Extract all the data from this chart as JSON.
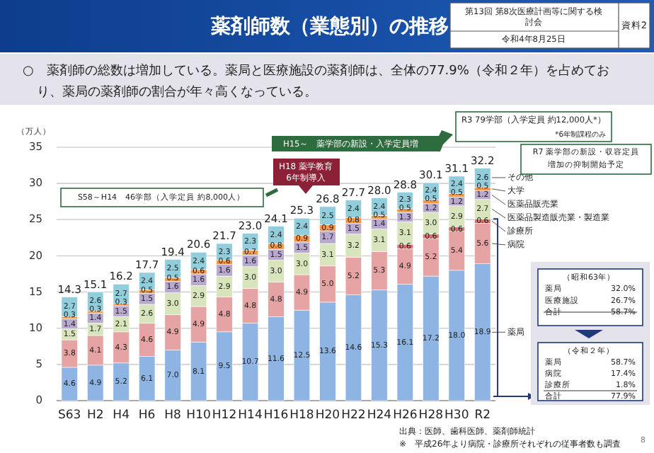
{
  "chart_data": {
    "type": "bar",
    "stacked": true,
    "title": "薬剤師数（業態別）の推移",
    "subtitle": "○　薬剤師の総数は増加している。薬局と医療施設の薬剤師は、全体の77.9%（令和２年）を占めており、薬局の薬剤師の割合が年々高くなっている。",
    "ylabel": "（万人）",
    "categories": [
      "S63",
      "H2",
      "H4",
      "H6",
      "H8",
      "H10",
      "H12",
      "H14",
      "H16",
      "H18",
      "H20",
      "H22",
      "H24",
      "H26",
      "H28",
      "H30",
      "R2"
    ],
    "series": [
      {
        "name": "薬局",
        "color": "#8db4e2",
        "values": [
          4.6,
          4.9,
          5.2,
          6.1,
          7.0,
          8.1,
          9.5,
          10.7,
          11.6,
          12.5,
          13.6,
          14.6,
          15.3,
          16.1,
          17.2,
          18.0,
          18.9
        ],
        "value_labels": [
          "4.6",
          "4.9",
          "5.2",
          "6.1",
          "7.0",
          "8.1",
          "9.5",
          "10.7",
          "11.6",
          "12.5",
          "13.6",
          "14.6",
          "15.3",
          "16.1",
          "17.2",
          "18.0",
          "18.9"
        ]
      },
      {
        "name": "病院",
        "color": "#e6a3a3",
        "values": [
          3.8,
          4.1,
          4.3,
          4.6,
          4.9,
          4.9,
          4.8,
          4.8,
          4.8,
          4.9,
          5.0,
          5.2,
          5.3,
          4.9,
          5.2,
          5.4,
          5.6
        ],
        "value_labels": [
          "3.8",
          "4.1",
          "4.3",
          "4.6",
          "4.9",
          "4.9",
          "4.8",
          "4.8",
          "4.8",
          "4.9",
          "5.0",
          "5.2",
          "5.3",
          "4.9",
          "5.2",
          "5.4",
          "5.6"
        ]
      },
      {
        "name": "診療所",
        "color": "#d9706e",
        "values": [
          null,
          null,
          null,
          null,
          null,
          null,
          null,
          null,
          null,
          null,
          null,
          null,
          null,
          0.6,
          0.6,
          0.6,
          0.6
        ],
        "value_labels": [
          null,
          null,
          null,
          null,
          null,
          null,
          null,
          null,
          null,
          null,
          null,
          null,
          null,
          "0.6",
          "0.6",
          "0.6",
          "0.6"
        ]
      },
      {
        "name": "医薬品製造販売業・製造業",
        "color": "#d7e4bc",
        "values": [
          1.5,
          1.7,
          2.1,
          2.6,
          3.0,
          2.9,
          2.9,
          3.0,
          3.0,
          3.0,
          3.1,
          3.2,
          3.1,
          3.1,
          3.0,
          2.9,
          2.7
        ],
        "value_labels": [
          "1.5",
          "1.7",
          "2.1",
          "2.6",
          "3.0",
          "2.9",
          "2.9",
          "3.0",
          "3.0",
          "3.0",
          "3.1",
          "3.2",
          "3.1",
          "3.1",
          "3.0",
          "2.9",
          "2.7"
        ]
      },
      {
        "name": "医薬品販売業",
        "color": "#b9a9d0",
        "values": [
          1.4,
          1.4,
          1.5,
          1.5,
          1.6,
          1.6,
          1.6,
          1.6,
          1.5,
          1.5,
          1.7,
          1.5,
          1.4,
          1.3,
          1.2,
          1.2,
          1.2
        ],
        "value_labels": [
          "1.4",
          "1.4",
          "1.5",
          "1.5",
          "1.6",
          "1.6",
          "1.6",
          "1.6",
          "1.5",
          "1.5",
          "1.7",
          "1.5",
          "1.4",
          "1.3",
          "1.2",
          "1.2",
          "1.2"
        ]
      },
      {
        "name": "大学",
        "color": "#f79646",
        "values": [
          0.3,
          0.3,
          0.3,
          0.5,
          0.5,
          0.6,
          0.6,
          0.7,
          0.8,
          0.9,
          0.9,
          0.8,
          0.5,
          0.5,
          0.5,
          0.5,
          0.5
        ],
        "value_labels": [
          "0.3",
          "0.3",
          "0.3",
          "0.5",
          "0.5",
          "0.6",
          "0.6",
          "0.7",
          "0.8",
          "0.9",
          "0.9",
          "0.8",
          "0.5",
          "0.5",
          "0.5",
          "0.5",
          "0.5"
        ]
      },
      {
        "name": "その他",
        "color": "#92cddc",
        "values": [
          2.7,
          2.6,
          2.7,
          2.4,
          2.5,
          2.4,
          2.3,
          2.3,
          2.4,
          2.4,
          2.5,
          2.4,
          2.4,
          2.3,
          2.4,
          2.4,
          2.6
        ],
        "value_labels": [
          "2.7",
          "2.6",
          "2.7",
          "2.4",
          "2.5",
          "2.4",
          "2.3",
          "2.3",
          "2.4",
          "2.4",
          "2.5",
          "2.4",
          "2.4",
          "2.3",
          "2.4",
          "2.4",
          "2.6"
        ]
      }
    ],
    "totals": [
      "14.3",
      "15.1",
      "16.2",
      "17.7",
      "19.4",
      "20.6",
      "21.7",
      "23.0",
      "24.1",
      "25.3",
      "26.8",
      "27.7",
      "28.0",
      "28.8",
      "30.1",
      "31.1",
      "32.2"
    ],
    "ylim": [
      0,
      35
    ],
    "yticks": [
      0,
      5,
      10,
      15,
      20,
      25,
      30,
      35
    ],
    "grid": "y",
    "annotations": [
      "第13回 第8次医療計画等に関する検",
      "討会",
      "令和4年8月25日",
      "資料2",
      "S58～H14　46学部（入学定員 約8,000人）",
      "H15～　薬学部の新設・入学定員増",
      "H18 薬学教育",
      "6年制導入",
      "R3 79学部（入学定員 約12,000人*）",
      "*6年制課程のみ",
      "R7 薬学部の新設・収容定員",
      "増加の抑制開始予定",
      "（昭和63年）",
      "薬局 32.0%",
      "医療施設 26.7%",
      "合計 58.7%",
      "（令和２年）",
      "薬局 58.7%",
      "病院 17.4%",
      "診療所 1.8%",
      "合計 77.9%",
      "出典：医師、歯科医師、薬剤師統計",
      "※　平成26年より病院・診療所それぞれの従事者数も調査",
      "8"
    ]
  }
}
